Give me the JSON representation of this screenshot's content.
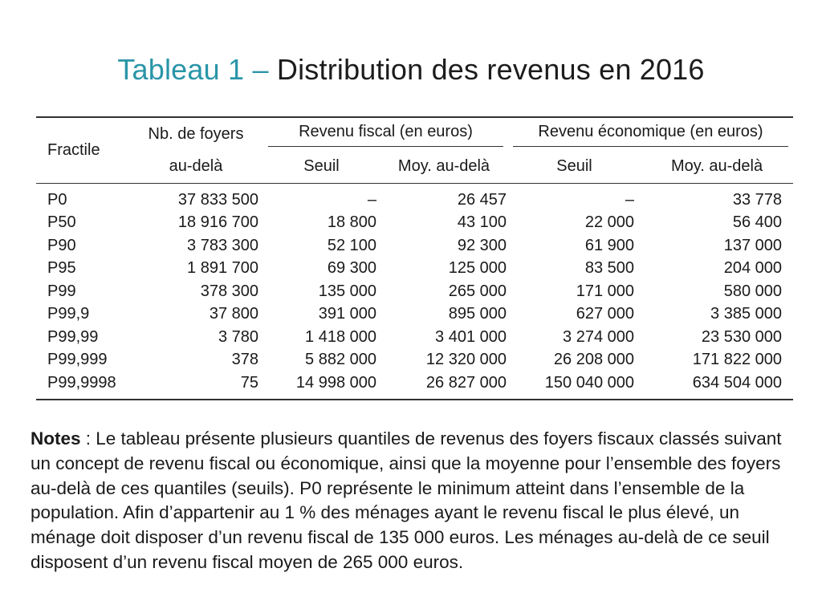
{
  "title": {
    "prefix": "Tableau 1 –",
    "main": "Distribution des revenus en 2016"
  },
  "table": {
    "headers": {
      "fractile": "Fractile",
      "nb_line1": "Nb. de foyers",
      "nb_line2": "au-delà",
      "fiscal_group": "Revenu fiscal (en euros)",
      "eco_group": "Revenu économique (en euros)",
      "fiscal_seuil": "Seuil",
      "fiscal_moy": "Moy. au-delà",
      "eco_seuil": "Seuil",
      "eco_moy": "Moy. au-delà"
    },
    "rows": [
      [
        "P0",
        "37 833 500",
        "–",
        "26 457",
        "–",
        "33 778"
      ],
      [
        "P50",
        "18 916 700",
        "18 800",
        "43 100",
        "22 000",
        "56 400"
      ],
      [
        "P90",
        "3 783 300",
        "52 100",
        "92 300",
        "61 900",
        "137 000"
      ],
      [
        "P95",
        "1 891 700",
        "69 300",
        "125 000",
        "83 500",
        "204 000"
      ],
      [
        "P99",
        "378 300",
        "135 000",
        "265 000",
        "171 000",
        "580 000"
      ],
      [
        "P99,9",
        "37 800",
        "391 000",
        "895 000",
        "627 000",
        "3 385 000"
      ],
      [
        "P99,99",
        "3 780",
        "1 418 000",
        "3 401 000",
        "3 274 000",
        "23 530 000"
      ],
      [
        "P99,999",
        "378",
        "5 882 000",
        "12 320 000",
        "26 208 000",
        "171 822 000"
      ],
      [
        "P99,9998",
        "75",
        "14 998 000",
        "26 827 000",
        "150 040 000",
        "634 504 000"
      ]
    ]
  },
  "notes": {
    "label": "Notes",
    "text": " : Le tableau présente plusieurs quantiles de revenus des foyers fiscaux classés suivant un concept de revenu fiscal ou économique, ainsi que la moyenne pour l’ensemble des foyers au-delà de ces quantiles (seuils). P0 représente le minimum atteint dans l’ensemble de la population. Afin d’appartenir au 1 % des ménages ayant le revenu fiscal le plus élevé, un ménage doit disposer d’un revenu fiscal de 135 000 euros. Les ménages au-delà de ce seuil disposent d’un revenu fiscal moyen de 265 000 euros."
  },
  "colors": {
    "title_accent": "#2a95a8",
    "text": "#1a1a1a",
    "rule": "#333333"
  }
}
